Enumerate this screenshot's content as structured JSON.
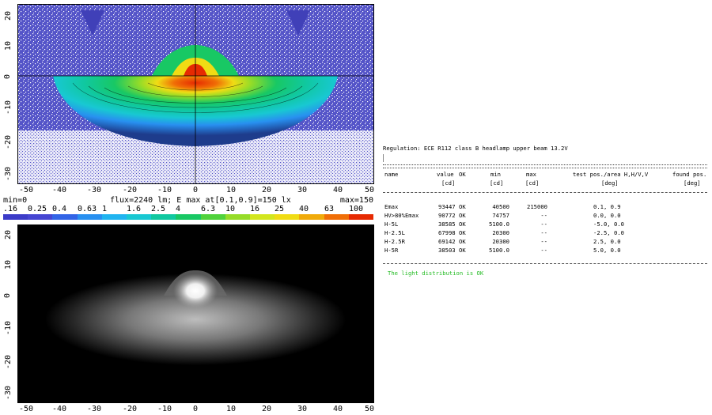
{
  "top_plot": {
    "y_ticks": [
      "20",
      "10",
      "0",
      "-10",
      "-20",
      "-30"
    ],
    "x_ticks": [
      "-50",
      "-40",
      "-30",
      "-20",
      "-10",
      "0",
      "10",
      "20",
      "30",
      "40",
      "50"
    ]
  },
  "info_line": {
    "min_label": "min=0",
    "flux_label": "flux=2240 lm; E max at[0.1,0.9]=150 lx",
    "max_label": "max=150"
  },
  "color_scale": {
    "labels": [
      ".16",
      "0.25",
      "0.4",
      "0.63",
      "1",
      "1.6",
      "2.5",
      "4",
      "6.3",
      "10",
      "16",
      "25",
      "40",
      "63",
      "100"
    ],
    "colors": [
      "#3c3cc8",
      "#4646d2",
      "#3264e6",
      "#2890f0",
      "#20b4f0",
      "#18c8d2",
      "#10c8a0",
      "#18c864",
      "#50d23c",
      "#96dc28",
      "#d2e61e",
      "#f0dc14",
      "#f0aa0a",
      "#f06e06",
      "#e62a02"
    ]
  },
  "bottom_plot": {
    "y_ticks": [
      "20",
      "10",
      "0",
      "-10",
      "-20",
      "-30"
    ],
    "x_ticks": [
      "-50",
      "-40",
      "-30",
      "-20",
      "-10",
      "0",
      "10",
      "20",
      "30",
      "40",
      "50"
    ]
  },
  "report": {
    "regulation": "Regulation: ECE R112 class B headlamp upper beam 13.2V",
    "headers": [
      "name",
      "value",
      "OK",
      "min",
      "max",
      "test pos./area H,H/V,V",
      "found pos."
    ],
    "units": [
      "[cd]",
      "[cd]",
      "[cd]",
      "[deg]",
      "[deg]"
    ],
    "rows": [
      {
        "name": "Emax",
        "value": "93447",
        "ok": "OK",
        "min": "40500",
        "max": "215000",
        "test": "0.1, 0.9"
      },
      {
        "name": "HV>80%Emax",
        "value": "90772",
        "ok": "OK",
        "min": "74757",
        "max": "--",
        "test": "0.0, 0.0"
      },
      {
        "name": "H-5L",
        "value": "38585",
        "ok": "OK",
        "min": "5100.0",
        "max": "--",
        "test": "-5.0, 0.0"
      },
      {
        "name": "H-2.5L",
        "value": "67998",
        "ok": "OK",
        "min": "20300",
        "max": "--",
        "test": "-2.5, 0.0"
      },
      {
        "name": "H-2.5R",
        "value": "69142",
        "ok": "OK",
        "min": "20300",
        "max": "--",
        "test": "2.5, 0.0"
      },
      {
        "name": "H-5R",
        "value": "38503",
        "ok": "OK",
        "min": "5100.0",
        "max": "--",
        "test": "5.0, 0.0"
      }
    ],
    "status": "The light distribution is OK",
    "status_color": "#22bb22"
  }
}
